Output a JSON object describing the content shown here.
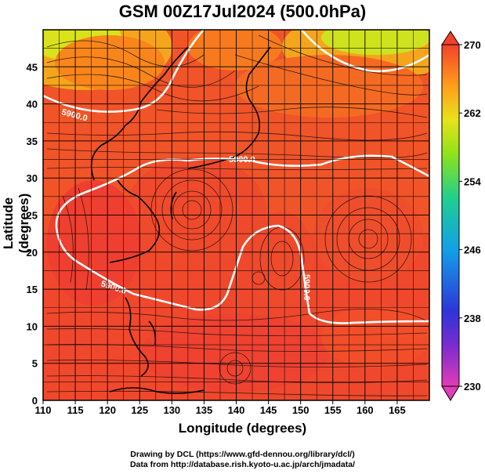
{
  "title": "GSM 00Z17Jul2024 (500.0hPa)",
  "axes": {
    "x_label": "Longitude (degrees)",
    "y_label": "Latitude  (degrees)",
    "x_ticks": [
      "110",
      "115",
      "120",
      "125",
      "130",
      "135",
      "140",
      "145",
      "150",
      "155",
      "160",
      "165"
    ],
    "y_ticks": [
      "0",
      "5",
      "10",
      "15",
      "20",
      "25",
      "30",
      "35",
      "40",
      "45"
    ]
  },
  "colorbar": {
    "labels": [
      "230",
      "238",
      "246",
      "254",
      "262",
      "270"
    ],
    "colors": [
      "#e23cb6",
      "#3a2bcf",
      "#12a0e8",
      "#2fcf6f",
      "#c8e818",
      "#ff9d1a",
      "#f24a2a"
    ]
  },
  "contours": {
    "labels": [
      "5900.0",
      "5900.0",
      "5900.0",
      "5900.0"
    ]
  },
  "credits": {
    "line1": "Drawing by DCL (https://www.gfd-dennou.org/library/dcl/)",
    "line2": "Data from http://database.rish.kyoto-u.ac.jp/arch/jmadata/"
  }
}
